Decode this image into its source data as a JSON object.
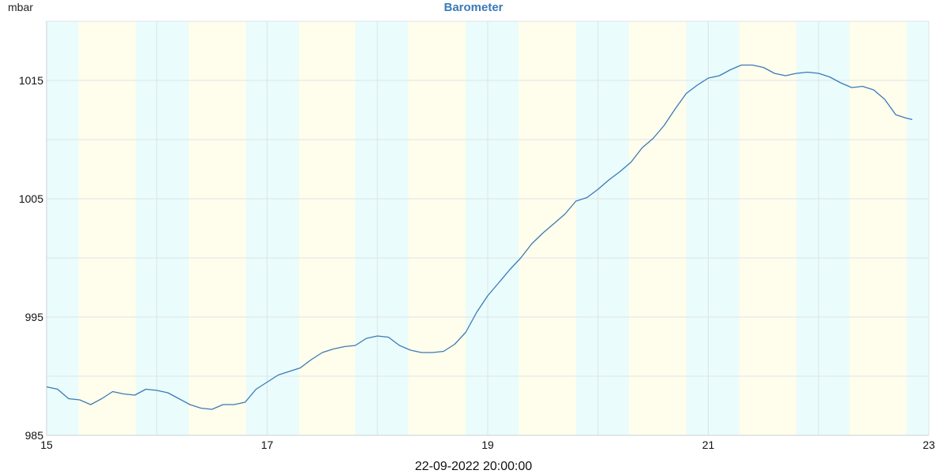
{
  "chart_data": {
    "type": "line",
    "title": "Barometer",
    "ylabel": "mbar",
    "xlabel": "",
    "ylim": [
      985,
      1020
    ],
    "xlim": [
      15,
      23
    ],
    "y_ticks": [
      985,
      995,
      1005,
      1015
    ],
    "x_ticks": [
      15,
      17,
      19,
      21,
      23
    ],
    "grid": true,
    "background_bands": {
      "colors": {
        "night": "#eafcfb",
        "day": "#fffdeb"
      },
      "segments": [
        {
          "from": 15.0,
          "to": 15.29,
          "kind": "night"
        },
        {
          "from": 15.29,
          "to": 15.81,
          "kind": "day"
        },
        {
          "from": 15.81,
          "to": 16.29,
          "kind": "night"
        },
        {
          "from": 16.29,
          "to": 16.81,
          "kind": "day"
        },
        {
          "from": 16.81,
          "to": 17.29,
          "kind": "night"
        },
        {
          "from": 17.29,
          "to": 17.8,
          "kind": "day"
        },
        {
          "from": 17.8,
          "to": 18.28,
          "kind": "night"
        },
        {
          "from": 18.28,
          "to": 18.8,
          "kind": "day"
        },
        {
          "from": 18.8,
          "to": 19.28,
          "kind": "night"
        },
        {
          "from": 19.28,
          "to": 19.8,
          "kind": "day"
        },
        {
          "from": 19.8,
          "to": 20.28,
          "kind": "night"
        },
        {
          "from": 20.28,
          "to": 20.8,
          "kind": "day"
        },
        {
          "from": 20.8,
          "to": 21.28,
          "kind": "night"
        },
        {
          "from": 21.28,
          "to": 21.8,
          "kind": "day"
        },
        {
          "from": 21.8,
          "to": 22.28,
          "kind": "night"
        },
        {
          "from": 22.28,
          "to": 22.8,
          "kind": "day"
        },
        {
          "from": 22.8,
          "to": 23.0,
          "kind": "night"
        }
      ]
    },
    "series": [
      {
        "color": "#3b7ab8",
        "x": [
          15.0,
          15.1,
          15.2,
          15.3,
          15.4,
          15.5,
          15.6,
          15.7,
          15.8,
          15.9,
          16.0,
          16.1,
          16.2,
          16.3,
          16.4,
          16.5,
          16.6,
          16.7,
          16.8,
          16.9,
          17.0,
          17.1,
          17.2,
          17.3,
          17.4,
          17.5,
          17.6,
          17.7,
          17.8,
          17.9,
          18.0,
          18.1,
          18.2,
          18.3,
          18.4,
          18.5,
          18.6,
          18.7,
          18.8,
          18.9,
          19.0,
          19.1,
          19.2,
          19.3,
          19.4,
          19.5,
          19.6,
          19.7,
          19.8,
          19.9,
          20.0,
          20.1,
          20.2,
          20.3,
          20.4,
          20.5,
          20.6,
          20.7,
          20.8,
          20.9,
          21.0,
          21.1,
          21.2,
          21.3,
          21.4,
          21.5,
          21.6,
          21.7,
          21.8,
          21.9,
          22.0,
          22.1,
          22.2,
          22.3,
          22.4,
          22.5,
          22.6,
          22.7,
          22.8,
          22.85
        ],
        "values": [
          989.1,
          988.9,
          988.1,
          988.0,
          987.6,
          988.1,
          988.7,
          988.5,
          988.4,
          988.9,
          988.8,
          988.6,
          988.1,
          987.6,
          987.3,
          987.2,
          987.6,
          987.6,
          987.8,
          988.9,
          989.5,
          990.1,
          990.4,
          990.7,
          991.4,
          992.0,
          992.3,
          992.5,
          992.6,
          993.2,
          993.4,
          993.3,
          992.6,
          992.2,
          992.0,
          992.0,
          992.1,
          992.7,
          993.7,
          995.4,
          996.8,
          997.9,
          999.0,
          1000.0,
          1001.2,
          1002.1,
          1002.9,
          1003.7,
          1004.8,
          1005.1,
          1005.8,
          1006.6,
          1007.3,
          1008.1,
          1009.3,
          1010.1,
          1011.2,
          1012.6,
          1013.9,
          1014.6,
          1015.2,
          1015.4,
          1015.9,
          1016.3,
          1016.3,
          1016.1,
          1015.6,
          1015.4,
          1015.6,
          1015.7,
          1015.6,
          1015.3,
          1014.8,
          1014.4,
          1014.5,
          1014.2,
          1013.4,
          1012.1,
          1011.8,
          1011.7
        ]
      }
    ]
  },
  "footer": {
    "timestamp": "22-09-2022 20:00:00"
  }
}
